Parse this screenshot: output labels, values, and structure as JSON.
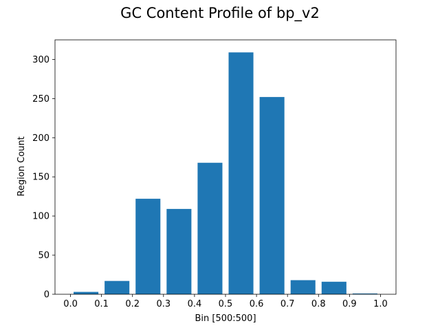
{
  "chart_data": {
    "type": "bar",
    "title": "GC Content Profile of bp_v2",
    "xlabel": "Bin [500:500]",
    "ylabel": "Region Count",
    "bin_centers": [
      0.05,
      0.15,
      0.25,
      0.35,
      0.45,
      0.55,
      0.65,
      0.75,
      0.85,
      0.95
    ],
    "bin_width": 0.1,
    "values": [
      3,
      17,
      122,
      109,
      168,
      309,
      252,
      18,
      16,
      1
    ],
    "xlim": [
      -0.05,
      1.05
    ],
    "ylim": [
      0,
      325
    ],
    "xticks": [
      0.0,
      0.1,
      0.2,
      0.3,
      0.4,
      0.5,
      0.6,
      0.7,
      0.8,
      0.9,
      1.0
    ],
    "xtick_labels": [
      "0.0",
      "0.1",
      "0.2",
      "0.3",
      "0.4",
      "0.5",
      "0.6",
      "0.7",
      "0.8",
      "0.9",
      "1.0"
    ],
    "yticks": [
      0,
      50,
      100,
      150,
      200,
      250,
      300
    ],
    "ytick_labels": [
      "0",
      "50",
      "100",
      "150",
      "200",
      "250",
      "300"
    ],
    "bar_color": "#1f77b4",
    "grid": false,
    "legend": "none"
  }
}
